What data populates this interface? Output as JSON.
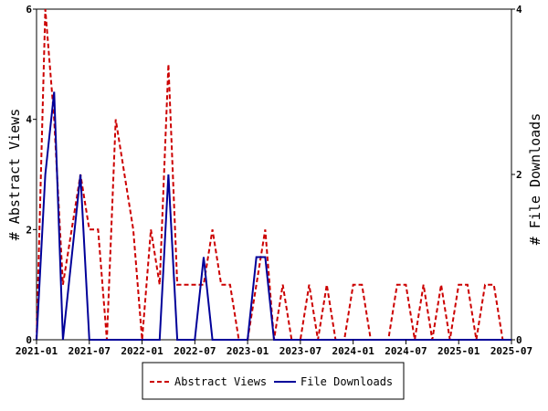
{
  "chart_data": {
    "type": "line",
    "x_unit": "month",
    "x_range": [
      "2021-01",
      "2025-07"
    ],
    "x_tick_labels": [
      "2021-01",
      "2021-07",
      "2022-01",
      "2022-07",
      "2023-01",
      "2023-07",
      "2024-01",
      "2024-07",
      "2025-01",
      "2025-07"
    ],
    "y_left": {
      "label": "# Abstract Views",
      "range": [
        0,
        6
      ],
      "ticks": [
        "0",
        "2",
        "4",
        "6"
      ]
    },
    "y_right": {
      "label": "# File Downloads",
      "range": [
        0,
        4
      ],
      "ticks": [
        "0",
        "2",
        "4"
      ]
    },
    "grid": false,
    "legend_position": "bottom",
    "series": [
      {
        "name": "Abstract Views",
        "axis": "left",
        "color": "#cc0000",
        "style": "dashed",
        "points": [
          [
            "2021-01",
            0
          ],
          [
            "2021-02",
            6
          ],
          [
            "2021-03",
            4
          ],
          [
            "2021-04",
            1
          ],
          [
            "2021-05",
            2
          ],
          [
            "2021-06",
            3
          ],
          [
            "2021-07",
            2
          ],
          [
            "2021-08",
            2
          ],
          [
            "2021-09",
            0
          ],
          [
            "2021-10",
            4
          ],
          [
            "2021-11",
            3
          ],
          [
            "2021-12",
            2
          ],
          [
            "2022-01",
            0
          ],
          [
            "2022-02",
            2
          ],
          [
            "2022-03",
            1
          ],
          [
            "2022-04",
            5
          ],
          [
            "2022-05",
            1
          ],
          [
            "2022-06",
            1
          ],
          [
            "2022-07",
            1
          ],
          [
            "2022-08",
            1
          ],
          [
            "2022-09",
            2
          ],
          [
            "2022-10",
            1
          ],
          [
            "2022-11",
            1
          ],
          [
            "2022-12",
            0
          ],
          [
            "2023-01",
            0
          ],
          [
            "2023-02",
            1
          ],
          [
            "2023-03",
            2
          ],
          [
            "2023-04",
            0
          ],
          [
            "2023-05",
            1
          ],
          [
            "2023-06",
            0
          ],
          [
            "2023-07",
            0
          ],
          [
            "2023-08",
            1
          ],
          [
            "2023-09",
            0
          ],
          [
            "2023-10",
            1
          ],
          [
            "2023-11",
            0
          ],
          [
            "2023-12",
            0
          ],
          [
            "2024-01",
            1
          ],
          [
            "2024-02",
            1
          ],
          [
            "2024-03",
            0
          ],
          [
            "2024-04",
            0
          ],
          [
            "2024-05",
            0
          ],
          [
            "2024-06",
            1
          ],
          [
            "2024-07",
            1
          ],
          [
            "2024-08",
            0
          ],
          [
            "2024-09",
            1
          ],
          [
            "2024-10",
            0
          ],
          [
            "2024-11",
            1
          ],
          [
            "2024-12",
            0
          ],
          [
            "2025-01",
            1
          ],
          [
            "2025-02",
            1
          ],
          [
            "2025-03",
            0
          ],
          [
            "2025-04",
            1
          ],
          [
            "2025-05",
            1
          ],
          [
            "2025-06",
            0
          ],
          [
            "2025-07",
            0
          ]
        ]
      },
      {
        "name": "File Downloads",
        "axis": "right",
        "color": "#000099",
        "style": "solid",
        "points": [
          [
            "2021-01",
            0
          ],
          [
            "2021-02",
            2
          ],
          [
            "2021-03",
            3
          ],
          [
            "2021-04",
            0
          ],
          [
            "2021-05",
            1
          ],
          [
            "2021-06",
            2
          ],
          [
            "2021-07",
            0
          ],
          [
            "2021-08",
            0
          ],
          [
            "2021-09",
            0
          ],
          [
            "2021-10",
            0
          ],
          [
            "2021-11",
            0
          ],
          [
            "2021-12",
            0
          ],
          [
            "2022-01",
            0
          ],
          [
            "2022-02",
            0
          ],
          [
            "2022-03",
            0
          ],
          [
            "2022-04",
            2
          ],
          [
            "2022-05",
            0
          ],
          [
            "2022-06",
            0
          ],
          [
            "2022-07",
            0
          ],
          [
            "2022-08",
            1
          ],
          [
            "2022-09",
            0
          ],
          [
            "2022-10",
            0
          ],
          [
            "2022-11",
            0
          ],
          [
            "2022-12",
            0
          ],
          [
            "2023-01",
            0
          ],
          [
            "2023-02",
            1
          ],
          [
            "2023-03",
            1
          ],
          [
            "2023-04",
            0
          ],
          [
            "2023-05",
            0
          ],
          [
            "2023-06",
            0
          ],
          [
            "2023-07",
            0
          ],
          [
            "2023-08",
            0
          ],
          [
            "2023-09",
            0
          ],
          [
            "2023-10",
            0
          ],
          [
            "2023-11",
            0
          ],
          [
            "2023-12",
            0
          ],
          [
            "2024-01",
            0
          ],
          [
            "2024-02",
            0
          ],
          [
            "2024-03",
            0
          ],
          [
            "2024-04",
            0
          ],
          [
            "2024-05",
            0
          ],
          [
            "2024-06",
            0
          ],
          [
            "2024-07",
            0
          ],
          [
            "2024-08",
            0
          ],
          [
            "2024-09",
            0
          ],
          [
            "2024-10",
            0
          ],
          [
            "2024-11",
            0
          ],
          [
            "2024-12",
            0
          ],
          [
            "2025-01",
            0
          ],
          [
            "2025-02",
            0
          ],
          [
            "2025-03",
            0
          ],
          [
            "2025-04",
            0
          ],
          [
            "2025-05",
            0
          ],
          [
            "2025-06",
            0
          ],
          [
            "2025-07",
            0
          ]
        ]
      }
    ]
  }
}
